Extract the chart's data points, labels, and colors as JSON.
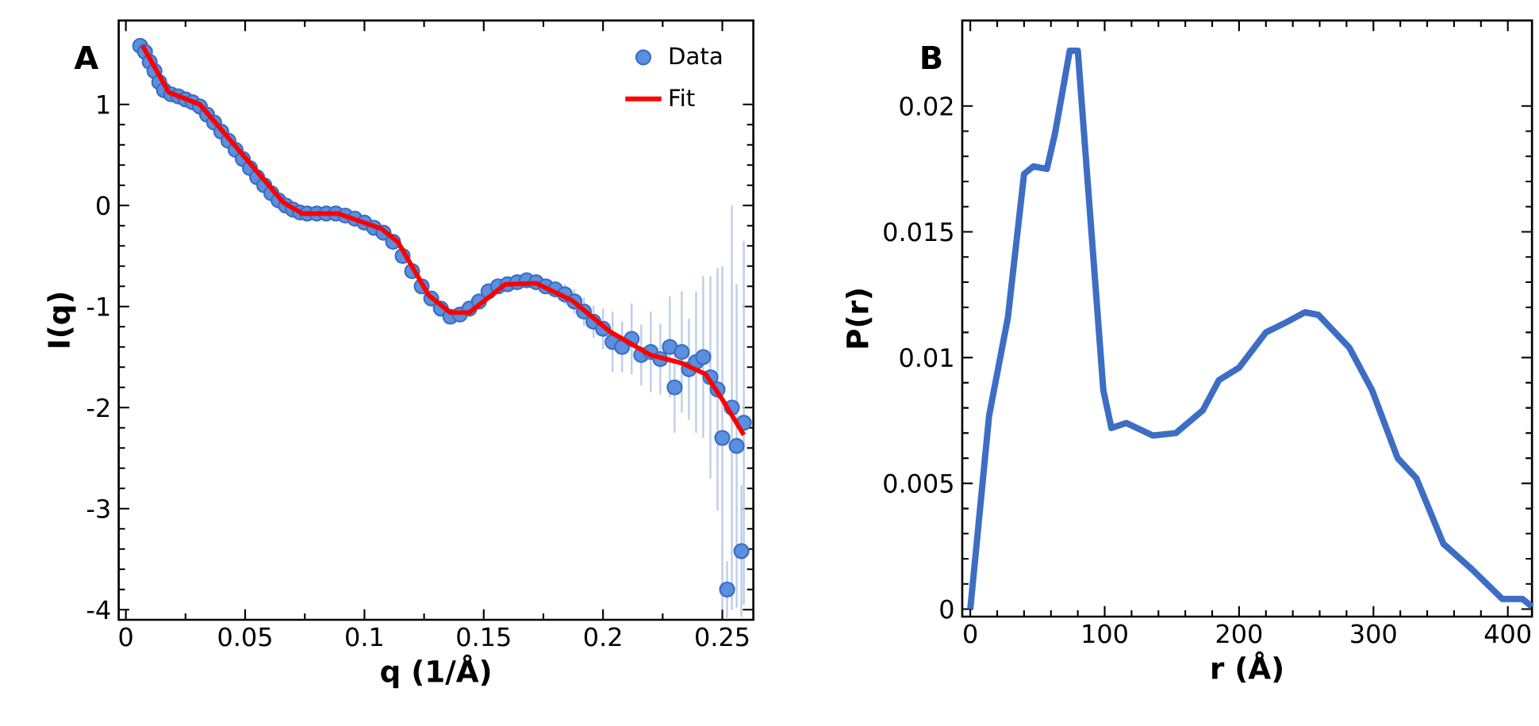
{
  "chart_data": [
    {
      "type": "scatter",
      "annotations": [
        "A"
      ],
      "xlabel": "q (1/Å)",
      "ylabel": "I(q)",
      "xlim": [
        -0.003,
        0.263
      ],
      "ylim": [
        -4.1,
        1.83
      ],
      "xticks": [
        0,
        0.05,
        0.1,
        0.15,
        0.2,
        0.25
      ],
      "yticks": [
        -4,
        -3,
        -2,
        -1,
        0,
        1
      ],
      "legend": "top right",
      "series": [
        {
          "name": "Data",
          "type": "scatter",
          "marker": "circle",
          "color": "#5b8fe0",
          "x": [
            0.006,
            0.008,
            0.01,
            0.012,
            0.014,
            0.016,
            0.019,
            0.022,
            0.025,
            0.028,
            0.031,
            0.034,
            0.037,
            0.04,
            0.043,
            0.046,
            0.049,
            0.052,
            0.055,
            0.058,
            0.061,
            0.064,
            0.067,
            0.07,
            0.073,
            0.076,
            0.08,
            0.084,
            0.088,
            0.092,
            0.096,
            0.1,
            0.104,
            0.108,
            0.112,
            0.116,
            0.12,
            0.124,
            0.128,
            0.132,
            0.136,
            0.14,
            0.144,
            0.148,
            0.152,
            0.156,
            0.16,
            0.164,
            0.168,
            0.172,
            0.176,
            0.18,
            0.184,
            0.188,
            0.192,
            0.196,
            0.2,
            0.204,
            0.208,
            0.212,
            0.216,
            0.22,
            0.224,
            0.228,
            0.23,
            0.233,
            0.236,
            0.239,
            0.242,
            0.245,
            0.248,
            0.25,
            0.252,
            0.254,
            0.256,
            0.258,
            0.259
          ],
          "values": [
            1.58,
            1.52,
            1.42,
            1.33,
            1.22,
            1.14,
            1.1,
            1.08,
            1.05,
            1.02,
            0.98,
            0.9,
            0.82,
            0.73,
            0.64,
            0.55,
            0.46,
            0.37,
            0.28,
            0.2,
            0.12,
            0.05,
            0.0,
            -0.04,
            -0.07,
            -0.08,
            -0.08,
            -0.08,
            -0.08,
            -0.1,
            -0.13,
            -0.17,
            -0.22,
            -0.27,
            -0.36,
            -0.5,
            -0.65,
            -0.8,
            -0.92,
            -1.02,
            -1.1,
            -1.08,
            -1.02,
            -0.95,
            -0.85,
            -0.8,
            -0.78,
            -0.76,
            -0.74,
            -0.76,
            -0.8,
            -0.83,
            -0.88,
            -0.95,
            -1.05,
            -1.15,
            -1.22,
            -1.35,
            -1.4,
            -1.32,
            -1.48,
            -1.45,
            -1.52,
            -1.4,
            -1.8,
            -1.45,
            -1.62,
            -1.55,
            -1.5,
            -1.7,
            -1.82,
            -2.3,
            -3.8,
            -2.0,
            -2.38,
            -3.42,
            -2.15
          ],
          "errors": [
            0.03,
            0.03,
            0.03,
            0.03,
            0.03,
            0.03,
            0.03,
            0.03,
            0.03,
            0.03,
            0.03,
            0.03,
            0.03,
            0.03,
            0.03,
            0.03,
            0.03,
            0.03,
            0.03,
            0.03,
            0.03,
            0.03,
            0.03,
            0.03,
            0.03,
            0.03,
            0.03,
            0.03,
            0.03,
            0.03,
            0.03,
            0.03,
            0.03,
            0.03,
            0.03,
            0.03,
            0.03,
            0.03,
            0.03,
            0.03,
            0.04,
            0.04,
            0.04,
            0.04,
            0.05,
            0.05,
            0.05,
            0.05,
            0.06,
            0.06,
            0.07,
            0.08,
            0.1,
            0.12,
            0.14,
            0.16,
            0.2,
            0.3,
            0.25,
            0.35,
            0.3,
            0.4,
            0.35,
            0.5,
            0.45,
            0.6,
            0.5,
            0.7,
            0.8,
            1.0,
            1.2,
            1.7,
            0.28,
            2.0,
            1.6,
            0.65,
            1.8
          ]
        },
        {
          "name": "Fit",
          "type": "line",
          "marker": "none",
          "color": "#ff0000",
          "x": [
            0.007,
            0.018,
            0.031,
            0.066,
            0.074,
            0.089,
            0.107,
            0.114,
            0.127,
            0.136,
            0.144,
            0.159,
            0.172,
            0.187,
            0.203,
            0.22,
            0.233,
            0.243,
            0.25,
            0.259
          ],
          "values": [
            1.58,
            1.12,
            1.0,
            0.03,
            -0.08,
            -0.08,
            -0.23,
            -0.36,
            -0.89,
            -1.06,
            -1.06,
            -0.78,
            -0.77,
            -0.94,
            -1.25,
            -1.48,
            -1.56,
            -1.67,
            -1.92,
            -2.27
          ]
        }
      ]
    },
    {
      "type": "line",
      "annotations": [
        "B"
      ],
      "xlabel": "r (Å)",
      "ylabel": "P(r)",
      "xlim": [
        -6,
        418
      ],
      "ylim": [
        -0.0003,
        0.0234
      ],
      "xticks": [
        0,
        100,
        200,
        300,
        400
      ],
      "yticks": [
        0,
        0.005,
        0.01,
        0.015,
        0.02
      ],
      "series": [
        {
          "color": "#3d6ec4",
          "x": [
            0,
            14,
            28,
            40,
            47,
            57,
            63,
            74,
            80,
            99,
            105,
            116,
            136,
            153,
            173,
            185,
            200,
            220,
            235,
            249,
            259,
            282,
            299,
            318,
            332,
            352,
            373,
            396,
            411,
            418
          ],
          "values": [
            0.0,
            0.0077,
            0.0116,
            0.0173,
            0.0176,
            0.0175,
            0.0189,
            0.0222,
            0.0222,
            0.0087,
            0.0072,
            0.0074,
            0.0069,
            0.007,
            0.0079,
            0.0091,
            0.0096,
            0.011,
            0.0114,
            0.0118,
            0.0117,
            0.0104,
            0.0087,
            0.006,
            0.0052,
            0.0026,
            0.0016,
            0.0004,
            0.0004,
            0.0001
          ]
        }
      ]
    }
  ]
}
